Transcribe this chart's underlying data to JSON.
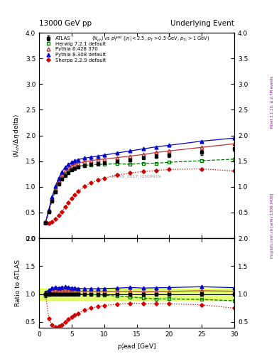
{
  "title_left": "13000 GeV pp",
  "title_right": "Underlying Event",
  "watermark": "ATLAS_2017_I1509919",
  "right_label_top": "Rivet 3.1.10, ≥ 2.7M events",
  "right_label_bot": "mcplots.cern.ch [arXiv:1306.3436]",
  "ylabel_main": "⟨N_{ch}/Δη delta⟩",
  "ylabel_ratio": "Ratio to ATLAS",
  "xlabel": "p$_T^l$ead [GeV]",
  "ylim_main": [
    0,
    4
  ],
  "ylim_ratio": [
    0.4,
    2.0
  ],
  "xlim": [
    0,
    30
  ],
  "yticks_main": [
    0.0,
    0.5,
    1.0,
    1.5,
    2.0,
    2.5,
    3.0,
    3.5,
    4.0
  ],
  "yticks_ratio": [
    0.5,
    1.0,
    1.5,
    2.0
  ],
  "xticks": [
    0,
    5,
    10,
    15,
    20,
    25,
    30
  ],
  "atlas_x": [
    1.0,
    1.5,
    2.0,
    2.5,
    3.0,
    3.5,
    4.0,
    4.5,
    5.0,
    5.5,
    6.0,
    7.0,
    8.0,
    9.0,
    10.0,
    12.0,
    14.0,
    16.0,
    18.0,
    20.0,
    25.0,
    30.0
  ],
  "atlas_y": [
    0.3,
    0.52,
    0.72,
    0.9,
    1.05,
    1.15,
    1.22,
    1.28,
    1.33,
    1.36,
    1.39,
    1.42,
    1.44,
    1.46,
    1.47,
    1.5,
    1.52,
    1.57,
    1.6,
    1.62,
    1.67,
    1.75
  ],
  "atlas_yerr": [
    0.015,
    0.015,
    0.015,
    0.015,
    0.015,
    0.015,
    0.015,
    0.015,
    0.015,
    0.015,
    0.015,
    0.015,
    0.015,
    0.015,
    0.015,
    0.02,
    0.025,
    0.025,
    0.03,
    0.035,
    0.05,
    0.06
  ],
  "herwig_x": [
    1.0,
    1.5,
    2.0,
    2.5,
    3.0,
    3.5,
    4.0,
    4.5,
    5.0,
    5.5,
    6.0,
    7.0,
    8.0,
    9.0,
    10.0,
    12.0,
    14.0,
    16.0,
    18.0,
    20.0,
    25.0,
    30.0
  ],
  "herwig_y": [
    0.3,
    0.52,
    0.73,
    0.92,
    1.07,
    1.17,
    1.25,
    1.31,
    1.35,
    1.38,
    1.4,
    1.42,
    1.43,
    1.44,
    1.44,
    1.45,
    1.44,
    1.46,
    1.46,
    1.48,
    1.51,
    1.54
  ],
  "pythia6_x": [
    1.0,
    1.5,
    2.0,
    2.5,
    3.0,
    3.5,
    4.0,
    4.5,
    5.0,
    5.5,
    6.0,
    7.0,
    8.0,
    9.0,
    10.0,
    12.0,
    14.0,
    16.0,
    18.0,
    20.0,
    25.0,
    30.0
  ],
  "pythia6_y": [
    0.3,
    0.54,
    0.77,
    0.97,
    1.12,
    1.23,
    1.31,
    1.37,
    1.41,
    1.44,
    1.46,
    1.49,
    1.51,
    1.53,
    1.54,
    1.57,
    1.6,
    1.63,
    1.67,
    1.7,
    1.77,
    1.84
  ],
  "pythia8_x": [
    1.0,
    1.5,
    2.0,
    2.5,
    3.0,
    3.5,
    4.0,
    4.5,
    5.0,
    5.5,
    6.0,
    7.0,
    8.0,
    9.0,
    10.0,
    12.0,
    14.0,
    16.0,
    18.0,
    20.0,
    25.0,
    30.0
  ],
  "pythia8_y": [
    0.31,
    0.56,
    0.8,
    1.01,
    1.17,
    1.29,
    1.38,
    1.44,
    1.48,
    1.51,
    1.53,
    1.56,
    1.58,
    1.6,
    1.62,
    1.66,
    1.7,
    1.74,
    1.78,
    1.81,
    1.89,
    1.95
  ],
  "sherpa_x": [
    1.0,
    1.5,
    2.0,
    2.5,
    3.0,
    3.5,
    4.0,
    4.5,
    5.0,
    5.5,
    6.0,
    7.0,
    8.0,
    9.0,
    10.0,
    12.0,
    14.0,
    16.0,
    18.0,
    20.0,
    25.0,
    30.0
  ],
  "sherpa_y": [
    0.3,
    0.29,
    0.32,
    0.37,
    0.44,
    0.52,
    0.61,
    0.7,
    0.78,
    0.85,
    0.91,
    1.01,
    1.08,
    1.13,
    1.17,
    1.23,
    1.27,
    1.3,
    1.32,
    1.34,
    1.35,
    1.31
  ],
  "color_atlas": "#000000",
  "color_herwig": "#007700",
  "color_pythia6": "#bb3333",
  "color_pythia8": "#0000cc",
  "color_sherpa": "#cc0000",
  "band_color": "#ccff00",
  "band_alpha": 0.55
}
